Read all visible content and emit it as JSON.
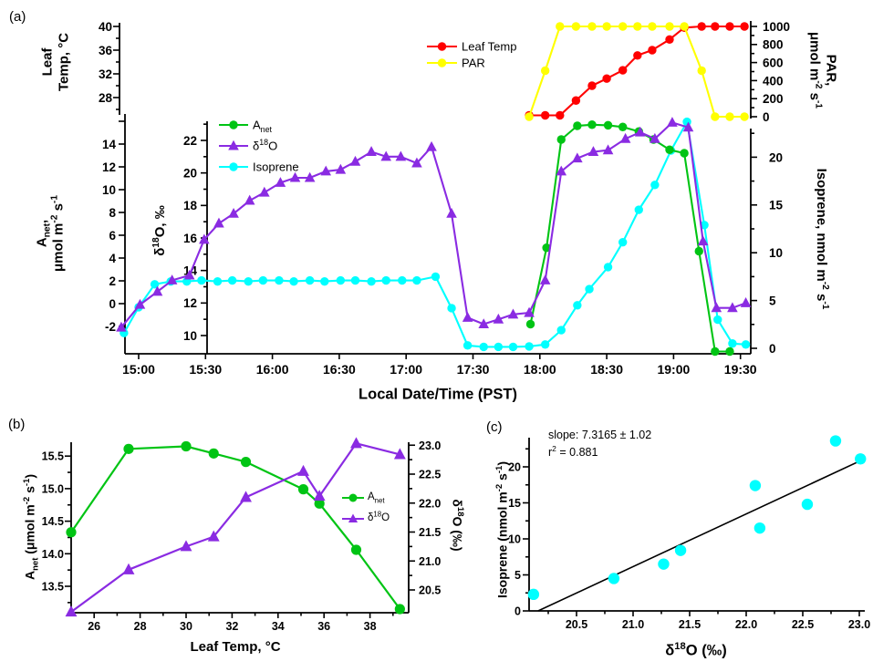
{
  "figure": {
    "panels": {
      "a": "(a)",
      "b": "(b)",
      "c": "(c)"
    }
  },
  "colors": {
    "anet": "#00c414",
    "d18o": "#8a2be2",
    "isoprene": "#00ffff",
    "leaf_temp": "#ff0000",
    "par": "#ffff00",
    "axis": "#000000",
    "fit": "#000000"
  },
  "labels": {
    "a": {
      "panel_letter": "(a)",
      "xlabel": [
        {
          "t": "Local Date/Time (PST)"
        }
      ],
      "leaf_axis_line1": [
        {
          "t": "Leaf"
        }
      ],
      "leaf_axis_line2": [
        {
          "t": "Temp, °C"
        }
      ],
      "anet_axis_line1": [
        {
          "t": "A"
        },
        {
          "t": "net",
          "s": "sub"
        },
        {
          "t": ","
        }
      ],
      "anet_axis_line2": [
        {
          "t": "μmol m"
        },
        {
          "t": "-2",
          "s": "sup"
        },
        {
          "t": " s"
        },
        {
          "t": "-1",
          "s": "sup"
        }
      ],
      "d18o_axis": [
        {
          "t": "δ"
        },
        {
          "t": "18",
          "s": "sup"
        },
        {
          "t": "O, ‰"
        }
      ],
      "par_axis_line1": [
        {
          "t": "PAR,"
        }
      ],
      "par_axis_line2": [
        {
          "t": "μmol m"
        },
        {
          "t": "-2",
          "s": "sup"
        },
        {
          "t": " s"
        },
        {
          "t": "-1",
          "s": "sup"
        }
      ],
      "iso_axis": [
        {
          "t": "Isoprene, nmol m"
        },
        {
          "t": "-2",
          "s": "sup"
        },
        {
          "t": " s"
        },
        {
          "t": "-1",
          "s": "sup"
        }
      ],
      "legend_anet": [
        {
          "t": "A"
        },
        {
          "t": "net",
          "s": "sub"
        }
      ],
      "legend_d18o": [
        {
          "t": "δ"
        },
        {
          "t": "18",
          "s": "sup"
        },
        {
          "t": "O"
        }
      ],
      "legend_isoprene": [
        {
          "t": "Isoprene"
        }
      ],
      "legend_leaf_temp": [
        {
          "t": "Leaf Temp"
        }
      ],
      "legend_par": [
        {
          "t": "PAR"
        }
      ]
    },
    "b": {
      "panel_letter": "(b)",
      "ylabel": [
        {
          "t": "A"
        },
        {
          "t": "net",
          "s": "sub"
        },
        {
          "t": " (μmol m"
        },
        {
          "t": "-2",
          "s": "sup"
        },
        {
          "t": " s"
        },
        {
          "t": "-1",
          "s": "sup"
        },
        {
          "t": ")"
        }
      ],
      "xlabel": [
        {
          "t": "Leaf Temp, °C"
        }
      ],
      "ylabel_right": [
        {
          "t": "δ"
        },
        {
          "t": "18",
          "s": "sup"
        },
        {
          "t": "O (‰)"
        }
      ],
      "legend_anet": [
        {
          "t": "A"
        },
        {
          "t": "net",
          "s": "sub"
        }
      ],
      "legend_d18o": [
        {
          "t": "δ"
        },
        {
          "t": "18",
          "s": "sup"
        },
        {
          "t": "O"
        }
      ]
    },
    "c": {
      "panel_letter": "(c)",
      "ylabel": [
        {
          "t": "Isoprene (nmol m"
        },
        {
          "t": "-2",
          "s": "sup"
        },
        {
          "t": " s"
        },
        {
          "t": "-1",
          "s": "sup"
        },
        {
          "t": ")"
        }
      ],
      "xlabel": [
        {
          "t": "δ"
        },
        {
          "t": "18",
          "s": "sup"
        },
        {
          "t": "O (‰)"
        }
      ],
      "annotation_slope": [
        {
          "t": "slope: 7.3165 ± 1.02"
        }
      ],
      "annotation_r2": [
        {
          "t": "r"
        },
        {
          "t": "2",
          "s": "sup"
        },
        {
          "t": " = 0.881"
        }
      ]
    }
  },
  "chart_data": [
    {
      "id": "a",
      "type": "line",
      "title": "Diurnal time series of leaf gas exchange",
      "xlabel": "Local Date/Time (PST)",
      "x_axis": {
        "tick_values": [
          15,
          15.5,
          16,
          16.5,
          17,
          17.5,
          18,
          18.5,
          19,
          19.5
        ],
        "tick_labels": [
          "15:00",
          "15:30",
          "16:00",
          "16:30",
          "17:00",
          "17:30",
          "18:00",
          "18:30",
          "19:00",
          "19:30"
        ],
        "range": [
          14.8,
          19.6
        ]
      },
      "y_axes": {
        "leaf_temp": {
          "label": "Leaf Temp, °C",
          "tick_values": [
            28,
            32,
            36,
            40
          ],
          "tick_labels": [
            "28",
            "32",
            "36",
            "40"
          ],
          "minor": [
            26,
            30,
            34,
            38
          ],
          "range": [
            25,
            40.5
          ]
        },
        "par": {
          "label": "PAR, μmol m-2 s-1",
          "tick_values": [
            0,
            200,
            400,
            600,
            800,
            1000
          ],
          "tick_labels": [
            "0",
            "200",
            "400",
            "600",
            "800",
            "1000"
          ],
          "minor": [
            100,
            300,
            500,
            700,
            900
          ],
          "range": [
            0,
            1060
          ]
        },
        "anet": {
          "label": "Anet, μmol m-2 s-1",
          "tick_values": [
            -2,
            0,
            2,
            4,
            6,
            8,
            10,
            12,
            14,
            16
          ],
          "tick_labels": [
            "-2",
            "0",
            "2",
            "4",
            "6",
            "8",
            "10",
            "12",
            "14",
            ""
          ],
          "minor": [],
          "range": [
            -4.4,
            16.6
          ]
        },
        "d18o": {
          "label": "δ18O, ‰",
          "tick_values": [
            10,
            12,
            14,
            16,
            18,
            20,
            22
          ],
          "tick_labels": [
            "10",
            "12",
            "14",
            "16",
            "18",
            "20",
            "22"
          ],
          "minor": [
            11,
            13,
            15,
            17,
            19,
            21,
            23
          ],
          "range": [
            8.9,
            23.2
          ]
        },
        "isoprene": {
          "label": "Isoprene, nmol m-2 s-1",
          "tick_values": [
            0,
            5,
            10,
            15,
            20
          ],
          "tick_labels": [
            "0",
            "5",
            "10",
            "15",
            "20"
          ],
          "minor": [
            2.5,
            7.5,
            12.5,
            17.5,
            22.5
          ],
          "range": [
            0,
            23.6
          ]
        }
      },
      "series": [
        {
          "name": "Leaf Temp",
          "axis": "leaf_temp",
          "color_key": "leaf_temp",
          "marker": "circle",
          "x": [
            17.92,
            18.04,
            18.15,
            18.27,
            18.39,
            18.5,
            18.62,
            18.73,
            18.84,
            18.97,
            19.08,
            19.21,
            19.31,
            19.42,
            19.53
          ],
          "y": [
            25,
            25,
            25,
            27.5,
            30,
            31.2,
            32.6,
            35.1,
            36.0,
            37.8,
            39.8,
            40,
            40,
            40,
            40
          ]
        },
        {
          "name": "PAR",
          "axis": "par",
          "color_key": "par",
          "marker": "circle",
          "x": [
            17.92,
            18.04,
            18.15,
            18.27,
            18.39,
            18.5,
            18.62,
            18.73,
            18.84,
            18.97,
            19.08,
            19.21,
            19.31,
            19.42,
            19.53
          ],
          "y": [
            0,
            510,
            1000,
            1000,
            1000,
            1000,
            1000,
            1000,
            1000,
            1000,
            1000,
            510,
            0,
            0,
            0
          ]
        },
        {
          "name": "Isoprene",
          "axis": "isoprene",
          "color_key": "isoprene",
          "marker": "circle",
          "x": [
            14.89,
            15.0,
            15.12,
            15.24,
            15.36,
            15.47,
            15.59,
            15.7,
            15.82,
            15.93,
            16.05,
            16.16,
            16.28,
            16.39,
            16.51,
            16.62,
            16.74,
            16.85,
            16.97,
            17.08,
            17.22,
            17.34,
            17.46,
            17.58,
            17.69,
            17.8,
            17.92,
            18.04,
            18.16,
            18.28,
            18.37,
            18.51,
            18.62,
            18.74,
            18.86,
            18.98,
            19.1,
            19.23,
            19.33,
            19.44,
            19.54
          ],
          "y": [
            1.6,
            4.3,
            6.7,
            7.0,
            7.0,
            7.1,
            7.0,
            7.1,
            7.0,
            7.1,
            7.1,
            7.0,
            7.1,
            7.0,
            7.1,
            7.1,
            7.0,
            7.1,
            7.1,
            7.1,
            7.5,
            4.2,
            0.3,
            0.15,
            0.15,
            0.15,
            0.2,
            0.4,
            1.9,
            4.5,
            6.2,
            8.5,
            11.1,
            14.5,
            17.1,
            20.7,
            23.7,
            12.9,
            3.0,
            0.5,
            0.4
          ]
        },
        {
          "name": "Anet",
          "axis": "anet",
          "color_key": "anet",
          "marker": "circle",
          "x": [
            17.93,
            18.05,
            18.16,
            18.28,
            18.39,
            18.51,
            18.62,
            18.74,
            18.85,
            18.97,
            19.08,
            19.19,
            19.31,
            19.42
          ],
          "y": [
            -1.8,
            4.9,
            14.4,
            15.6,
            15.7,
            15.65,
            15.5,
            15.1,
            14.4,
            13.5,
            13.2,
            4.6,
            -4.2,
            -4.2
          ]
        },
        {
          "name": "δ18O",
          "axis": "d18o",
          "color_key": "d18o",
          "marker": "triangle",
          "x": [
            14.87,
            15.01,
            15.14,
            15.25,
            15.38,
            15.49,
            15.6,
            15.71,
            15.83,
            15.94,
            16.06,
            16.17,
            16.28,
            16.4,
            16.51,
            16.62,
            16.74,
            16.85,
            16.96,
            17.08,
            17.19,
            17.34,
            17.46,
            17.58,
            17.69,
            17.8,
            17.92,
            18.04,
            18.16,
            18.28,
            18.4,
            18.51,
            18.64,
            18.75,
            18.86,
            18.99,
            19.11,
            19.22,
            19.32,
            19.44,
            19.54
          ],
          "y": [
            10.5,
            11.9,
            12.7,
            13.4,
            13.7,
            15.9,
            16.9,
            17.5,
            18.3,
            18.8,
            19.4,
            19.7,
            19.7,
            20.1,
            20.2,
            20.7,
            21.3,
            21.0,
            21.0,
            20.6,
            21.6,
            17.5,
            11.1,
            10.7,
            11.0,
            11.3,
            11.4,
            13.4,
            20.1,
            20.9,
            21.3,
            21.4,
            22.1,
            22.5,
            22.1,
            23.1,
            22.8,
            15.8,
            11.7,
            11.7,
            12.0
          ]
        }
      ],
      "legend_main": [
        "Anet",
        "δ18O",
        "Isoprene"
      ],
      "legend_top": [
        "Leaf Temp",
        "PAR"
      ]
    },
    {
      "id": "b",
      "type": "line",
      "xlabel": "Leaf Temp, °C",
      "x_axis": {
        "tick_values": [
          26,
          28,
          30,
          32,
          34,
          36,
          38
        ],
        "tick_labels": [
          "26",
          "28",
          "30",
          "32",
          "34",
          "36",
          "38"
        ],
        "minor": [
          25,
          27,
          29,
          31,
          33,
          35,
          37,
          39
        ],
        "range": [
          25,
          39.7
        ]
      },
      "y_left": {
        "label": "Anet (μmol m-2 s-1)",
        "tick_values": [
          13.5,
          14.0,
          14.5,
          15.0,
          15.5
        ],
        "tick_labels": [
          "13.5",
          "14.0",
          "14.5",
          "15.0",
          "15.5"
        ],
        "minor": [
          13.25,
          13.75,
          14.25,
          14.75,
          15.25,
          15.75
        ],
        "range": [
          13.1,
          15.72
        ]
      },
      "y_right": {
        "label": "δ18O (‰)",
        "tick_values": [
          20.5,
          21.0,
          21.5,
          22.0,
          22.5,
          23.0
        ],
        "tick_labels": [
          "20.5",
          "21.0",
          "21.5",
          "22.0",
          "22.5",
          "23.0"
        ],
        "minor": [
          20.75,
          21.25,
          21.75,
          22.25,
          22.75
        ],
        "range": [
          20.11,
          23.05
        ]
      },
      "x": [
        25.0,
        27.5,
        30.0,
        31.2,
        32.6,
        35.1,
        35.8,
        37.4,
        39.3
      ],
      "series": [
        {
          "name": "Anet",
          "axis": "left",
          "color_key": "anet",
          "marker": "circle",
          "values": [
            14.33,
            15.61,
            15.65,
            15.54,
            15.41,
            14.99,
            14.77,
            14.06,
            13.15
          ]
        },
        {
          "name": "δ18O",
          "axis": "right",
          "color_key": "d18o",
          "marker": "triangle",
          "values": [
            20.12,
            20.85,
            21.25,
            21.42,
            22.1,
            22.55,
            22.12,
            23.03,
            22.84
          ]
        }
      ],
      "legend": [
        "Anet",
        "δ18O"
      ]
    },
    {
      "id": "c",
      "type": "scatter",
      "xlabel": "δ18O (‰)",
      "ylabel": "Isoprene (nmol m-2 s-1)",
      "x_axis": {
        "tick_values": [
          20.5,
          21.0,
          21.5,
          22.0,
          22.5,
          23.0
        ],
        "tick_labels": [
          "20.5",
          "21.0",
          "21.5",
          "22.0",
          "22.5",
          "23.0"
        ],
        "minor": [
          20.25,
          20.75,
          21.25,
          21.75,
          22.25,
          22.75
        ],
        "range": [
          20.08,
          23.05
        ]
      },
      "y_axis": {
        "tick_values": [
          0,
          5,
          10,
          15,
          20
        ],
        "tick_labels": [
          "0",
          "5",
          "10",
          "15",
          "20"
        ],
        "minor": [
          2.5,
          7.5,
          12.5,
          17.5,
          22.5
        ],
        "range": [
          0,
          24
        ]
      },
      "points": {
        "x": [
          20.12,
          20.83,
          21.27,
          21.42,
          22.08,
          22.12,
          22.54,
          22.79,
          23.01
        ],
        "y": [
          2.3,
          4.5,
          6.5,
          8.4,
          17.4,
          11.5,
          14.8,
          23.6,
          21.1
        ]
      },
      "fit_line": {
        "x": [
          20.16,
          23.04
        ],
        "y": [
          0,
          21.07
        ],
        "slope": "7.3165 ± 1.02",
        "r2": "0.881"
      },
      "annotations": [
        "slope: 7.3165 ± 1.02",
        "r² = 0.881"
      ]
    }
  ]
}
